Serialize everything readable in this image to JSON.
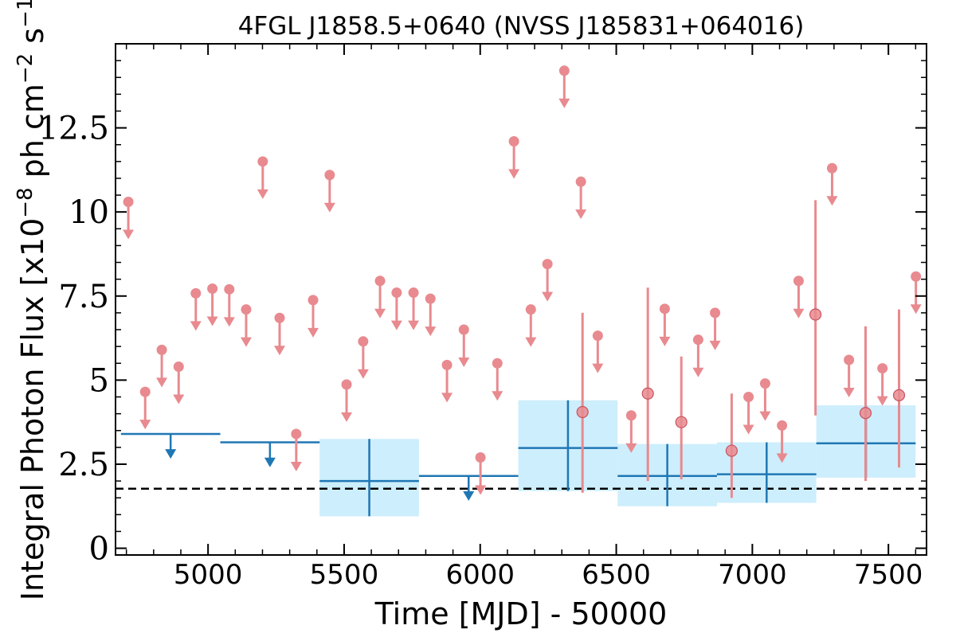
{
  "chart_data": {
    "type": "scatter",
    "title": "4FGL J1858.5+0640 (NVSS J185831+064016)",
    "xlabel": "Time [MJD] - 50000",
    "ylabel_main": "Integral Photon Flux [x10",
    "ylabel_exp1": "−8",
    "ylabel_mid": " ph cm",
    "ylabel_exp2": "−2",
    "ylabel_mid2": " s",
    "ylabel_exp3": "−1",
    "ylabel_end": "]",
    "xlim": [
      4660,
      7640
    ],
    "ylim": [
      -0.2,
      15
    ],
    "x_ticks": [
      5000,
      5500,
      6000,
      6500,
      7000,
      7500
    ],
    "x_tick_labels": [
      "5000",
      "5500",
      "6000",
      "6500",
      "7000",
      "7500"
    ],
    "y_ticks": [
      0,
      2.5,
      5,
      7.5,
      10,
      12.5
    ],
    "y_tick_labels": [
      "0",
      "2.5",
      "5",
      "7.5",
      "10",
      "12.5"
    ],
    "reference_level": 1.77,
    "colors": {
      "short_bin": "#e88a8f",
      "long_bin": "#1f77b4",
      "long_bin_band": "#cdeefc",
      "reference_line": "#000000"
    },
    "short_bin_upper_limits": [
      [
        4707,
        10.3
      ],
      [
        4769,
        4.65
      ],
      [
        4830,
        5.9
      ],
      [
        4892,
        5.4
      ],
      [
        4955,
        7.58
      ],
      [
        5016,
        7.72
      ],
      [
        5078,
        7.7
      ],
      [
        5140,
        7.1
      ],
      [
        5201,
        11.5
      ],
      [
        5263,
        6.85
      ],
      [
        5324,
        3.4
      ],
      [
        5386,
        7.38
      ],
      [
        5447,
        11.1
      ],
      [
        5509,
        4.87
      ],
      [
        5570,
        6.15
      ],
      [
        5632,
        7.95
      ],
      [
        5693,
        7.6
      ],
      [
        5755,
        7.6
      ],
      [
        5817,
        7.42
      ],
      [
        5878,
        5.45
      ],
      [
        5940,
        6.5
      ],
      [
        6001,
        2.7
      ],
      [
        6063,
        5.5
      ],
      [
        6124,
        12.1
      ],
      [
        6186,
        7.1
      ],
      [
        6247,
        8.45
      ],
      [
        6309,
        14.2
      ],
      [
        6370,
        10.9
      ],
      [
        6432,
        6.32
      ],
      [
        6555,
        3.95
      ],
      [
        6678,
        7.12
      ],
      [
        6801,
        6.2
      ],
      [
        6863,
        7.0
      ],
      [
        6986,
        4.5
      ],
      [
        7047,
        4.9
      ],
      [
        7109,
        3.65
      ],
      [
        7170,
        7.95
      ],
      [
        7293,
        11.3
      ],
      [
        7355,
        5.6
      ],
      [
        7478,
        5.35
      ],
      [
        7601,
        8.08
      ]
    ],
    "short_bin_detections": [
      [
        6376,
        4.05,
        1.65,
        7.0
      ],
      [
        6616,
        4.6,
        2.0,
        7.75
      ],
      [
        6739,
        3.75,
        2.05,
        5.7
      ],
      [
        6924,
        2.9,
        1.5,
        4.6
      ],
      [
        7232,
        6.95,
        3.95,
        10.35
      ],
      [
        7416,
        4.02,
        2.0,
        6.6
      ],
      [
        7539,
        4.55,
        2.4,
        7.1
      ]
    ],
    "long_bin_upper_limits": [
      [
        4680,
        5045,
        3.4
      ],
      [
        5045,
        5410,
        3.15
      ],
      [
        5775,
        6140,
        2.15
      ]
    ],
    "long_bin_detections": [
      [
        5410,
        5775,
        2.0,
        0.95,
        3.25
      ],
      [
        6140,
        6505,
        2.98,
        1.7,
        4.4
      ],
      [
        6505,
        6870,
        2.15,
        1.25,
        3.1
      ],
      [
        6870,
        7235,
        2.2,
        1.35,
        3.15
      ],
      [
        7235,
        7600,
        3.12,
        2.1,
        4.25
      ]
    ]
  }
}
